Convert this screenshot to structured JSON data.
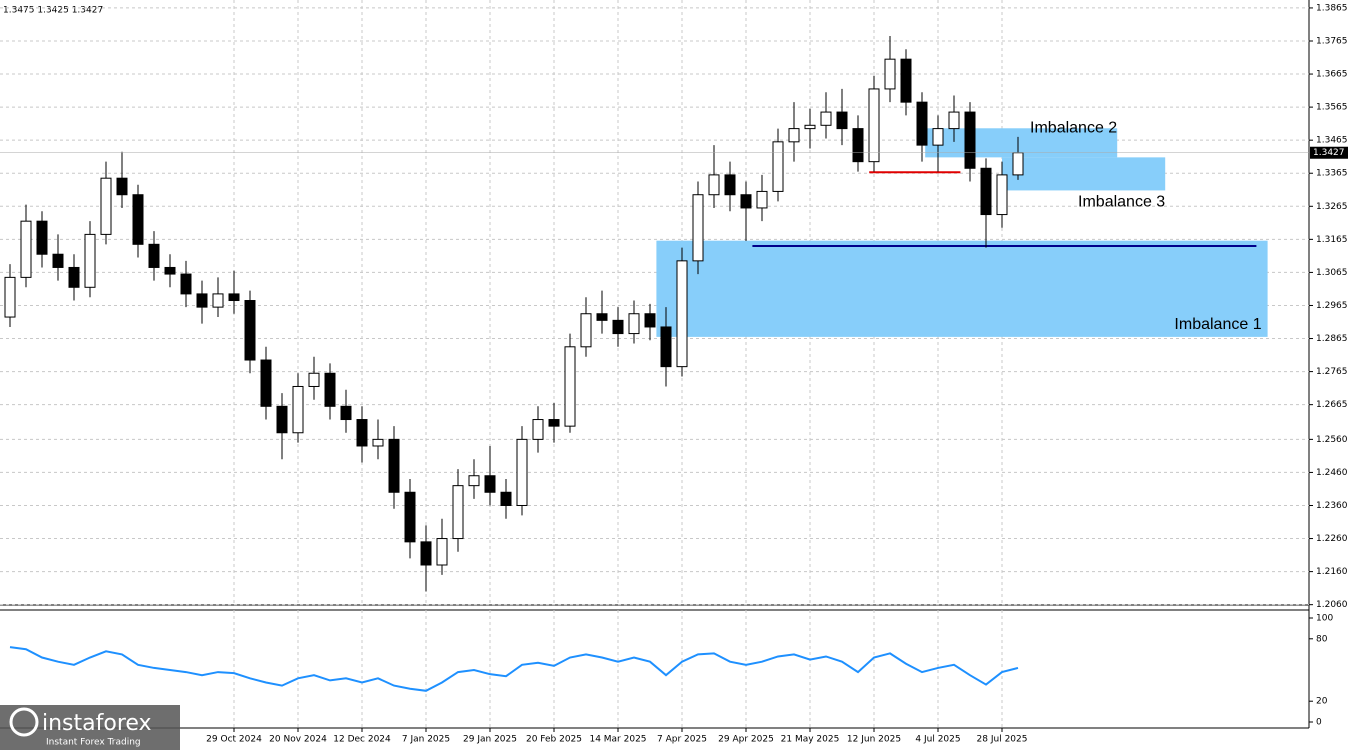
{
  "chart_data": {
    "type": "candlestick",
    "header": "1.3475 1.3425 1.3427",
    "categories": [
      null,
      null,
      null,
      null,
      null,
      null,
      null,
      null,
      null,
      null,
      null,
      null,
      null,
      null,
      "29 Oct 2024",
      null,
      null,
      null,
      "20 Nov 2024",
      null,
      null,
      null,
      "12 Dec 2024",
      null,
      null,
      null,
      "7 Jan 2025",
      null,
      null,
      null,
      "29 Jan 2025",
      null,
      null,
      null,
      "20 Feb 2025",
      null,
      null,
      null,
      "14 Mar 2025",
      null,
      null,
      null,
      "7 Apr 2025",
      null,
      null,
      null,
      "29 Apr 2025",
      null,
      null,
      null,
      "21 May 2025",
      null,
      null,
      null,
      "12 Jun 2025",
      null,
      null,
      null,
      "4 Jul 2025",
      null,
      null,
      null,
      "28 Jul 2025",
      null
    ],
    "open": [
      1.293,
      1.305,
      1.322,
      1.312,
      1.308,
      1.302,
      1.318,
      1.335,
      1.33,
      1.315,
      1.308,
      1.306,
      1.3,
      1.296,
      1.3,
      1.298,
      1.28,
      1.266,
      1.258,
      1.272,
      1.276,
      1.266,
      1.262,
      1.254,
      1.256,
      1.24,
      1.225,
      1.218,
      1.226,
      1.242,
      1.245,
      1.24,
      1.236,
      1.256,
      1.262,
      1.26,
      1.284,
      1.294,
      1.292,
      1.288,
      1.294,
      1.29,
      1.278,
      1.31,
      1.33,
      1.336,
      1.33,
      1.326,
      1.331,
      1.346,
      1.35,
      1.351,
      1.355,
      1.35,
      1.34,
      1.362,
      1.371,
      1.358,
      1.345,
      1.35,
      1.355,
      1.338,
      1.324,
      1.336
    ],
    "high": [
      1.309,
      1.327,
      1.325,
      1.318,
      1.312,
      1.322,
      1.34,
      1.343,
      1.333,
      1.319,
      1.312,
      1.31,
      1.304,
      1.305,
      1.307,
      1.301,
      1.284,
      1.27,
      1.276,
      1.281,
      1.279,
      1.271,
      1.266,
      1.262,
      1.26,
      1.244,
      1.23,
      1.232,
      1.247,
      1.25,
      1.254,
      1.244,
      1.26,
      1.266,
      1.267,
      1.288,
      1.299,
      1.301,
      1.296,
      1.298,
      1.297,
      1.296,
      1.314,
      1.334,
      1.345,
      1.34,
      1.334,
      1.336,
      1.35,
      1.358,
      1.356,
      1.361,
      1.362,
      1.354,
      1.366,
      1.378,
      1.374,
      1.361,
      1.354,
      1.36,
      1.358,
      1.341,
      1.34,
      1.3475
    ],
    "low": [
      1.29,
      1.302,
      1.308,
      1.304,
      1.298,
      1.299,
      1.315,
      1.326,
      1.311,
      1.304,
      1.302,
      1.296,
      1.291,
      1.293,
      1.294,
      1.276,
      1.262,
      1.25,
      1.255,
      1.268,
      1.262,
      1.258,
      1.249,
      1.25,
      1.235,
      1.22,
      1.21,
      1.215,
      1.222,
      1.238,
      1.236,
      1.232,
      1.233,
      1.252,
      1.255,
      1.258,
      1.281,
      1.288,
      1.284,
      1.285,
      1.286,
      1.272,
      1.275,
      1.306,
      1.326,
      1.325,
      1.316,
      1.322,
      1.328,
      1.34,
      1.344,
      1.347,
      1.345,
      1.337,
      1.337,
      1.358,
      1.354,
      1.34,
      1.337,
      1.346,
      1.334,
      1.314,
      1.32,
      1.3345
    ],
    "close": [
      1.305,
      1.322,
      1.312,
      1.308,
      1.302,
      1.318,
      1.335,
      1.33,
      1.315,
      1.308,
      1.306,
      1.3,
      1.296,
      1.3,
      1.298,
      1.28,
      1.266,
      1.258,
      1.272,
      1.276,
      1.266,
      1.262,
      1.254,
      1.256,
      1.24,
      1.225,
      1.218,
      1.226,
      1.242,
      1.245,
      1.24,
      1.236,
      1.256,
      1.262,
      1.26,
      1.284,
      1.294,
      1.292,
      1.288,
      1.294,
      1.29,
      1.278,
      1.31,
      1.33,
      1.336,
      1.33,
      1.326,
      1.331,
      1.346,
      1.35,
      1.351,
      1.355,
      1.35,
      1.34,
      1.362,
      1.371,
      1.358,
      1.345,
      1.35,
      1.355,
      1.338,
      1.324,
      1.336,
      1.3427
    ],
    "ylim": [
      1.2059,
      1.3889
    ],
    "yticks": [
      1.3865,
      1.3765,
      1.3665,
      1.3565,
      1.3465,
      1.3365,
      1.3265,
      1.3165,
      1.3065,
      1.2965,
      1.2865,
      1.2765,
      1.2665,
      {
        "value": 1.256,
        "label": "1.2560"
      },
      {
        "value": 1.246,
        "label": "1.2460"
      },
      {
        "value": 1.236,
        "label": "1.2360"
      },
      {
        "value": 1.226,
        "label": "1.2260"
      },
      {
        "value": 1.216,
        "label": "1.2160"
      },
      {
        "value": 1.206,
        "label": "1.2060"
      }
    ],
    "zones": [
      {
        "name": "Imbalance 1",
        "top": 1.3161,
        "bottom": 1.287,
        "x": [
          40.9,
          79.1
        ],
        "color": "#87cefa"
      },
      {
        "name": "Imbalance 2",
        "top": 1.3501,
        "bottom": 1.3413,
        "x": [
          57.7,
          69.7
        ],
        "color": "#87cefa"
      },
      {
        "name": "Imbalance 3",
        "top": 1.3413,
        "bottom": 1.3313,
        "x": [
          62.5,
          72.7
        ],
        "color": "#87cefa"
      }
    ],
    "levels": [
      {
        "value": 1.3145,
        "x": [
          46.9,
          78.4
        ],
        "color": "#00008b"
      },
      {
        "value": 1.3368,
        "x": [
          54.2,
          59.9
        ],
        "color": "#e00000"
      }
    ],
    "oscillator": {
      "values": [
        72,
        70,
        62,
        58,
        55,
        62,
        68,
        65,
        55,
        52,
        50,
        48,
        45,
        48,
        47,
        42,
        38,
        35,
        42,
        45,
        40,
        42,
        38,
        42,
        35,
        32,
        30,
        38,
        48,
        50,
        46,
        44,
        55,
        57,
        54,
        62,
        65,
        62,
        58,
        62,
        58,
        45,
        58,
        65,
        66,
        58,
        55,
        58,
        63,
        65,
        60,
        63,
        58,
        48,
        62,
        66,
        56,
        48,
        52,
        55,
        45,
        36,
        48,
        52
      ],
      "ylim": [
        0,
        100
      ],
      "yticks": [
        100,
        80,
        20,
        0
      ],
      "color": "#1e90ff"
    },
    "brand": "instaforex",
    "tagline": "Instant Forex Trading"
  }
}
